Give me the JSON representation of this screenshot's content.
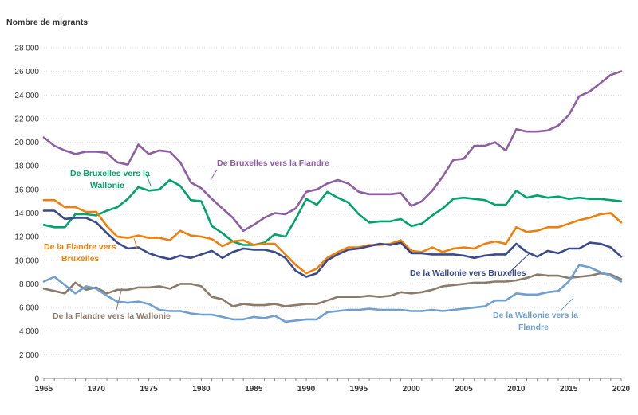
{
  "chart_data": {
    "type": "line",
    "ylabel": "Nombre de migrants",
    "xlim": [
      1965,
      2020
    ],
    "ylim": [
      0,
      28000
    ],
    "grid": true,
    "x_ticks": [
      1965,
      1970,
      1975,
      1980,
      1985,
      1990,
      1995,
      2000,
      2005,
      2010,
      2015,
      2020
    ],
    "y_ticks": [
      0,
      2000,
      4000,
      6000,
      8000,
      10000,
      12000,
      14000,
      16000,
      18000,
      20000,
      22000,
      24000,
      26000,
      28000
    ],
    "y_tick_labels": [
      "0",
      "2 000",
      "4 000",
      "6 000",
      "8 000",
      "10 000",
      "12 000",
      "14 000",
      "16 000",
      "18 000",
      "20 000",
      "22 000",
      "24 000",
      "26 000",
      "28 000"
    ],
    "x": [
      1965,
      1966,
      1967,
      1968,
      1969,
      1970,
      1971,
      1972,
      1973,
      1974,
      1975,
      1976,
      1977,
      1978,
      1979,
      1980,
      1981,
      1982,
      1983,
      1984,
      1985,
      1986,
      1987,
      1988,
      1989,
      1990,
      1991,
      1992,
      1993,
      1994,
      1995,
      1996,
      1997,
      1998,
      1999,
      2000,
      2001,
      2002,
      2003,
      2004,
      2005,
      2006,
      2007,
      2008,
      2009,
      2010,
      2011,
      2012,
      2013,
      2014,
      2015,
      2016,
      2017,
      2018,
      2019,
      2020
    ],
    "series": [
      {
        "name": "De Bruxelles vers la Flandre",
        "color": "#8e5ea2",
        "values": [
          20400,
          19700,
          19300,
          19000,
          19200,
          19200,
          19100,
          18300,
          18100,
          19800,
          19000,
          19300,
          19200,
          18300,
          16600,
          16100,
          15200,
          14400,
          13600,
          12500,
          13000,
          13600,
          14000,
          13900,
          14400,
          15800,
          16000,
          16500,
          16800,
          16500,
          15800,
          15600,
          15600,
          15600,
          15700,
          14600,
          15000,
          15900,
          17100,
          18500,
          18600,
          19700,
          19700,
          20000,
          19300,
          21100,
          20900,
          20900,
          21000,
          21400,
          22300,
          23900,
          24300,
          25000,
          25700,
          26000
        ]
      },
      {
        "name": "De Bruxelles vers la Wallonie",
        "color": "#00a36c",
        "values": [
          13000,
          12800,
          12800,
          13900,
          13900,
          13800,
          14200,
          14500,
          15200,
          16200,
          15900,
          16000,
          16800,
          16300,
          15100,
          15000,
          12900,
          12300,
          11600,
          11300,
          11300,
          11500,
          12200,
          12000,
          13500,
          15200,
          14700,
          15800,
          15300,
          14900,
          13900,
          13200,
          13300,
          13300,
          13500,
          12900,
          13100,
          13800,
          14400,
          15200,
          15300,
          15200,
          15100,
          14700,
          14700,
          15900,
          15300,
          15500,
          15300,
          15400,
          15200,
          15300,
          15200,
          15200,
          15100,
          15000
        ]
      },
      {
        "name": "De la Flandre vers Bruxelles",
        "color": "#f07f09",
        "values": [
          15100,
          15100,
          14500,
          14500,
          14100,
          14100,
          12900,
          12000,
          11900,
          12100,
          11900,
          11900,
          11700,
          12500,
          12100,
          12000,
          11800,
          11200,
          11600,
          11700,
          11300,
          11400,
          11400,
          10500,
          9600,
          8900,
          9300,
          10200,
          10700,
          11100,
          11100,
          11300,
          11300,
          11400,
          11700,
          10800,
          10700,
          11100,
          10700,
          11000,
          11100,
          11000,
          11400,
          11600,
          11400,
          12800,
          12400,
          12500,
          12800,
          12800,
          13100,
          13400,
          13600,
          13900,
          14000,
          13200
        ]
      },
      {
        "name": "De la Wallonie vers Bruxelles",
        "color": "#3a4a8c",
        "values": [
          14200,
          14200,
          13500,
          13600,
          13600,
          13200,
          12300,
          11500,
          11000,
          11100,
          10600,
          10300,
          10100,
          10400,
          10200,
          10500,
          10800,
          10200,
          10700,
          11000,
          10900,
          10900,
          10700,
          10200,
          9100,
          8600,
          8900,
          10000,
          10500,
          10900,
          11000,
          11200,
          11400,
          11300,
          11500,
          10600,
          10600,
          10500,
          10500,
          10500,
          10400,
          10200,
          10400,
          10500,
          10500,
          11400,
          10700,
          10300,
          10800,
          10600,
          11000,
          11000,
          11500,
          11400,
          11100,
          10300
        ]
      },
      {
        "name": "De la Flandre vers la Wallonie",
        "color": "#8c7b6b",
        "values": [
          7600,
          7400,
          7200,
          8100,
          7500,
          7700,
          7200,
          7500,
          7500,
          7700,
          7700,
          7800,
          7600,
          8000,
          8000,
          7800,
          6900,
          6700,
          6100,
          6300,
          6200,
          6200,
          6300,
          6100,
          6200,
          6300,
          6300,
          6600,
          6900,
          6900,
          6900,
          7000,
          6900,
          7000,
          7300,
          7200,
          7300,
          7500,
          7800,
          7900,
          8000,
          8100,
          8100,
          8200,
          8200,
          8300,
          8500,
          8800,
          8700,
          8700,
          8500,
          8600,
          8700,
          8900,
          8800,
          8400
        ]
      },
      {
        "name": "De la Wallonie vers la Flandre",
        "color": "#6fa0cf",
        "values": [
          8200,
          8600,
          7900,
          7200,
          7800,
          7600,
          7000,
          6500,
          6400,
          6500,
          6300,
          5800,
          5700,
          5700,
          5500,
          5400,
          5400,
          5200,
          5000,
          5000,
          5200,
          5100,
          5300,
          4800,
          4900,
          5000,
          5000,
          5600,
          5700,
          5800,
          5800,
          5900,
          5800,
          5800,
          5800,
          5700,
          5700,
          5800,
          5700,
          5800,
          5900,
          6000,
          6100,
          6600,
          6600,
          7200,
          7100,
          7100,
          7300,
          7400,
          8200,
          9600,
          9400,
          9000,
          8700,
          8200
        ]
      }
    ]
  },
  "labels": {
    "bxl_fla": "De Bruxelles vers la Flandre",
    "bxl_wal_1": "De Bruxelles vers la",
    "bxl_wal_2": "Wallonie",
    "fla_bxl_1": "De la Flandre vers",
    "fla_bxl_2": "Bruxelles",
    "wal_bxl": "De la Wallonie vers Bruxelles",
    "fla_wal": "De la Flandre vers la Wallonie",
    "wal_fla_1": "De la Wallonie vers la",
    "wal_fla_2": "Flandre"
  }
}
